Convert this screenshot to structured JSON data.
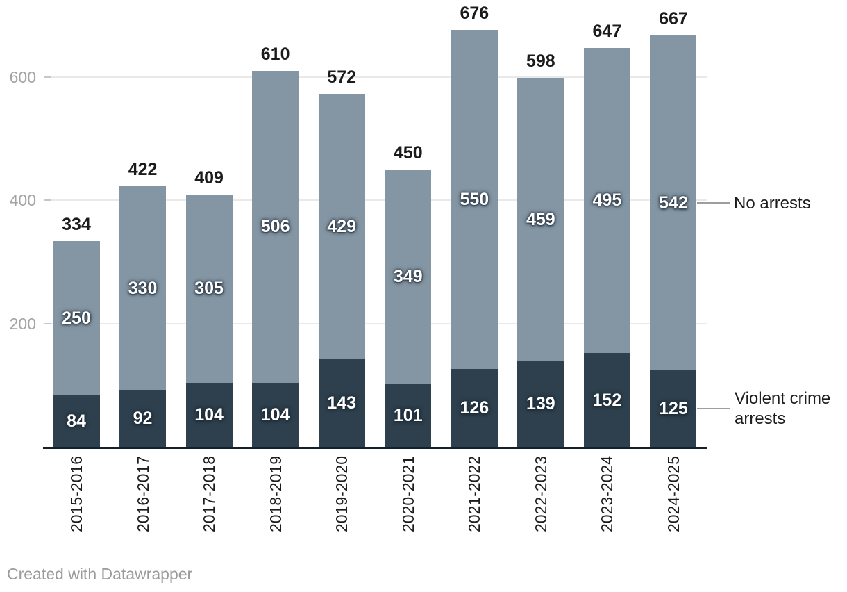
{
  "chart_data": {
    "type": "bar",
    "stacked": true,
    "categories": [
      "2015-2016",
      "2016-2017",
      "2017-2018",
      "2018-2019",
      "2019-2020",
      "2020-2021",
      "2021-2022",
      "2022-2023",
      "2023-2024",
      "2024-2025"
    ],
    "series": [
      {
        "name": "Violent crime arrests",
        "color": "#2e404d",
        "values": [
          84,
          92,
          104,
          104,
          143,
          101,
          126,
          139,
          152,
          125
        ]
      },
      {
        "name": "No arrests",
        "color": "#8496a4",
        "values": [
          250,
          330,
          305,
          506,
          429,
          349,
          550,
          459,
          495,
          542
        ]
      }
    ],
    "totals": [
      334,
      422,
      409,
      610,
      572,
      450,
      676,
      598,
      647,
      667
    ],
    "title": "",
    "xlabel": "",
    "ylabel": "",
    "ylim": [
      0,
      700
    ],
    "y_ticks": [
      200,
      400,
      600
    ],
    "grid": true,
    "legend_position": "right-of-last-bar",
    "grid_color": "#e9e9e9"
  },
  "legend": {
    "no_arrests_label": "No arrests",
    "violent_label": "Violent crime arrests"
  },
  "footer": {
    "credit": "Created with Datawrapper"
  }
}
